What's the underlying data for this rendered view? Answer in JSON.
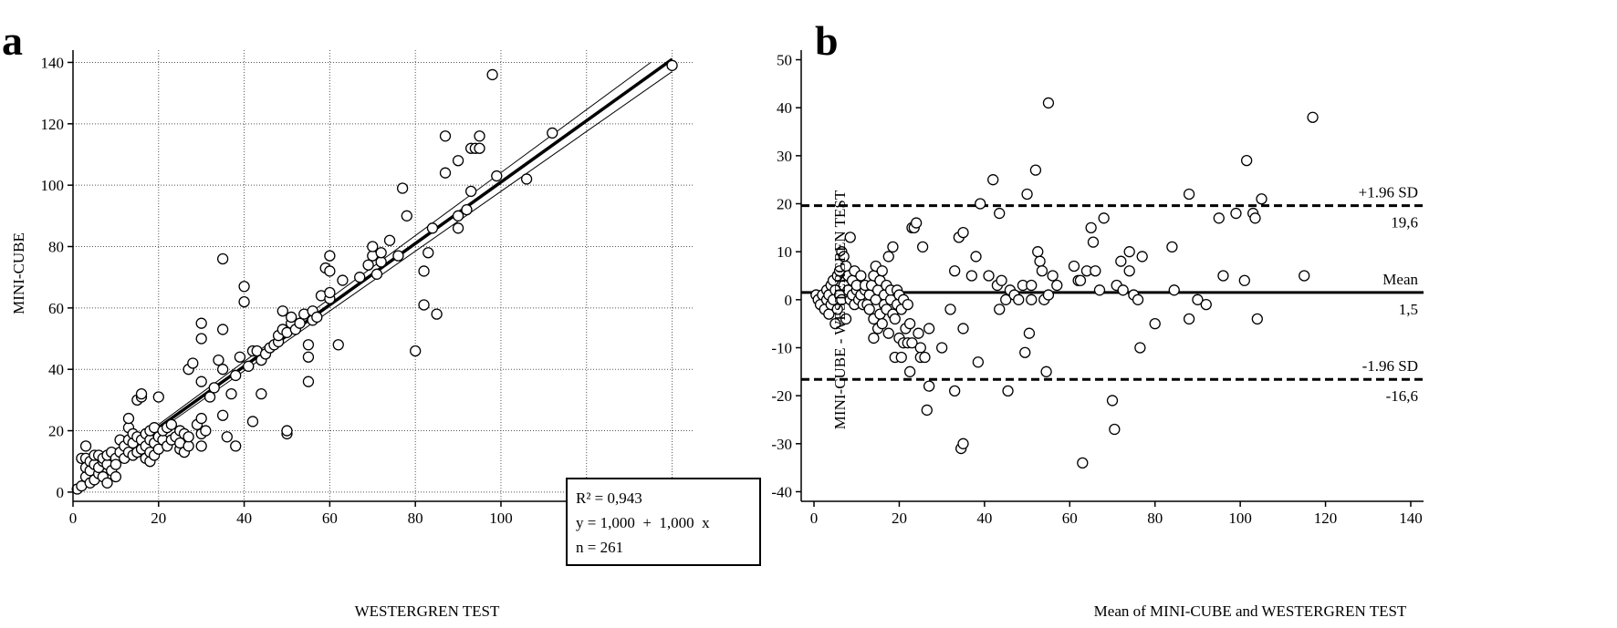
{
  "chart_data": [
    {
      "type": "scatter",
      "panel": "a",
      "xlabel": "WESTERGREN TEST",
      "ylabel": "MINI-CUBE",
      "xlim": [
        0,
        145
      ],
      "ylim": [
        -3,
        144
      ],
      "xticks": [
        0,
        20,
        40,
        60,
        80,
        100,
        120,
        140
      ],
      "yticks": [
        0,
        20,
        40,
        60,
        80,
        100,
        120,
        140
      ],
      "grid": true,
      "stats_box": {
        "r2": "R² = 0,943",
        "equation": "y = 1,000  +  1,000  x",
        "n": "n = 261"
      },
      "regression": {
        "intercept": 1.0,
        "slope": 1.0,
        "x_range": [
          0,
          140
        ]
      },
      "confidence_band": {
        "upper": [
          [
            0,
            1.5
          ],
          [
            135,
            140
          ]
        ],
        "lower": [
          [
            0,
            0.5
          ],
          [
            140,
            137
          ]
        ]
      },
      "points": [
        [
          1,
          1
        ],
        [
          2,
          2
        ],
        [
          2,
          11
        ],
        [
          3,
          15
        ],
        [
          3,
          11
        ],
        [
          3,
          5
        ],
        [
          3,
          8
        ],
        [
          4,
          3
        ],
        [
          4,
          7
        ],
        [
          4,
          10
        ],
        [
          5,
          4
        ],
        [
          5,
          9
        ],
        [
          5,
          12
        ],
        [
          6,
          6
        ],
        [
          6,
          8
        ],
        [
          6,
          12
        ],
        [
          7,
          5
        ],
        [
          7,
          10
        ],
        [
          7,
          11
        ],
        [
          8,
          3
        ],
        [
          8,
          9
        ],
        [
          8,
          12
        ],
        [
          9,
          7
        ],
        [
          9,
          13
        ],
        [
          10,
          5
        ],
        [
          10,
          11
        ],
        [
          10,
          9
        ],
        [
          11,
          13
        ],
        [
          11,
          17
        ],
        [
          12,
          11
        ],
        [
          12,
          15
        ],
        [
          13,
          13
        ],
        [
          13,
          17
        ],
        [
          13,
          21
        ],
        [
          13,
          24
        ],
        [
          14,
          12
        ],
        [
          14,
          16
        ],
        [
          14,
          19
        ],
        [
          15,
          13
        ],
        [
          15,
          18
        ],
        [
          15,
          30
        ],
        [
          16,
          14
        ],
        [
          16,
          17
        ],
        [
          16,
          31
        ],
        [
          16,
          32
        ],
        [
          17,
          11
        ],
        [
          17,
          15
        ],
        [
          17,
          19
        ],
        [
          18,
          10
        ],
        [
          18,
          13
        ],
        [
          18,
          17
        ],
        [
          18,
          20
        ],
        [
          19,
          12
        ],
        [
          19,
          16
        ],
        [
          19,
          21
        ],
        [
          20,
          14
        ],
        [
          20,
          18
        ],
        [
          20,
          31
        ],
        [
          21,
          17
        ],
        [
          21,
          20
        ],
        [
          22,
          15
        ],
        [
          22,
          21
        ],
        [
          23,
          17
        ],
        [
          23,
          22
        ],
        [
          24,
          18
        ],
        [
          25,
          14
        ],
        [
          25,
          16
        ],
        [
          25,
          20
        ],
        [
          26,
          13
        ],
        [
          26,
          19
        ],
        [
          27,
          15
        ],
        [
          27,
          18
        ],
        [
          27,
          40
        ],
        [
          28,
          42
        ],
        [
          29,
          22
        ],
        [
          30,
          15
        ],
        [
          30,
          19
        ],
        [
          30,
          24
        ],
        [
          30,
          36
        ],
        [
          30,
          50
        ],
        [
          30,
          55
        ],
        [
          31,
          20
        ],
        [
          32,
          31
        ],
        [
          33,
          34
        ],
        [
          34,
          43
        ],
        [
          35,
          25
        ],
        [
          35,
          40
        ],
        [
          35,
          53
        ],
        [
          35,
          76
        ],
        [
          36,
          18
        ],
        [
          37,
          32
        ],
        [
          38,
          15
        ],
        [
          38,
          38
        ],
        [
          39,
          44
        ],
        [
          40,
          62
        ],
        [
          40,
          67
        ],
        [
          41,
          41
        ],
        [
          42,
          23
        ],
        [
          42,
          46
        ],
        [
          43,
          46
        ],
        [
          44,
          32
        ],
        [
          44,
          43
        ],
        [
          45,
          45
        ],
        [
          46,
          47
        ],
        [
          47,
          48
        ],
        [
          48,
          49
        ],
        [
          48,
          51
        ],
        [
          49,
          53
        ],
        [
          49,
          59
        ],
        [
          50,
          19
        ],
        [
          50,
          20
        ],
        [
          50,
          52
        ],
        [
          51,
          55
        ],
        [
          51,
          57
        ],
        [
          52,
          53
        ],
        [
          53,
          55
        ],
        [
          54,
          58
        ],
        [
          55,
          36
        ],
        [
          55,
          44
        ],
        [
          55,
          48
        ],
        [
          56,
          56
        ],
        [
          56,
          59
        ],
        [
          57,
          57
        ],
        [
          58,
          64
        ],
        [
          59,
          73
        ],
        [
          60,
          63
        ],
        [
          60,
          65
        ],
        [
          60,
          72
        ],
        [
          60,
          77
        ],
        [
          62,
          48
        ],
        [
          63,
          69
        ],
        [
          67,
          70
        ],
        [
          69,
          74
        ],
        [
          70,
          77
        ],
        [
          70,
          80
        ],
        [
          71,
          71
        ],
        [
          72,
          75
        ],
        [
          72,
          78
        ],
        [
          74,
          82
        ],
        [
          76,
          77
        ],
        [
          77,
          99
        ],
        [
          78,
          90
        ],
        [
          80,
          46
        ],
        [
          82,
          61
        ],
        [
          82,
          72
        ],
        [
          83,
          78
        ],
        [
          84,
          86
        ],
        [
          85,
          58
        ],
        [
          87,
          104
        ],
        [
          87,
          116
        ],
        [
          90,
          86
        ],
        [
          90,
          90
        ],
        [
          90,
          108
        ],
        [
          92,
          92
        ],
        [
          93,
          98
        ],
        [
          93,
          112
        ],
        [
          94,
          112
        ],
        [
          95,
          112
        ],
        [
          95,
          116
        ],
        [
          99,
          103
        ],
        [
          98,
          136
        ],
        [
          106,
          102
        ],
        [
          112,
          117
        ],
        [
          140,
          139
        ]
      ]
    },
    {
      "type": "scatter",
      "panel": "b",
      "xlabel": "Mean of MINI-CUBE and WESTERGREN TEST",
      "ylabel": "MINI-CUBE - WESTERGREN TEST",
      "xlim": [
        -3,
        143
      ],
      "ylim": [
        -42,
        52
      ],
      "xticks": [
        0,
        20,
        40,
        60,
        80,
        100,
        120,
        140
      ],
      "yticks": [
        -40,
        -30,
        -20,
        -10,
        0,
        10,
        20,
        30,
        40,
        50
      ],
      "grid": false,
      "reference_lines": [
        {
          "y": 19.6,
          "style": "dashed",
          "label_top": "+1.96 SD",
          "label_bottom": "19,6"
        },
        {
          "y": 1.5,
          "style": "solid",
          "label_top": "Mean",
          "label_bottom": "1,5"
        },
        {
          "y": -16.6,
          "style": "dashed",
          "label_top": "-1.96 SD",
          "label_bottom": "-16,6"
        }
      ],
      "points": [
        [
          0.5,
          1
        ],
        [
          1,
          0
        ],
        [
          1.5,
          -1
        ],
        [
          2,
          1
        ],
        [
          2.5,
          -2
        ],
        [
          3,
          0
        ],
        [
          3,
          2
        ],
        [
          3.5,
          -3
        ],
        [
          3.5,
          1
        ],
        [
          4,
          3
        ],
        [
          4,
          -1
        ],
        [
          4.5,
          0
        ],
        [
          4.5,
          4
        ],
        [
          5,
          -5
        ],
        [
          5,
          2
        ],
        [
          5.5,
          -2
        ],
        [
          5.5,
          5
        ],
        [
          6,
          1
        ],
        [
          6,
          6
        ],
        [
          6.5,
          0
        ],
        [
          6.5,
          10
        ],
        [
          7,
          3
        ],
        [
          7,
          9
        ],
        [
          7.5,
          -4
        ],
        [
          7.5,
          7
        ],
        [
          8,
          2
        ],
        [
          8,
          5
        ],
        [
          8.5,
          0
        ],
        [
          8.5,
          13
        ],
        [
          9,
          1
        ],
        [
          9,
          4
        ],
        [
          9.5,
          -1
        ],
        [
          9.5,
          6
        ],
        [
          10,
          2
        ],
        [
          10,
          3
        ],
        [
          10.5,
          0
        ],
        [
          11,
          5
        ],
        [
          11,
          1
        ],
        [
          11.5,
          -1
        ],
        [
          12,
          2
        ],
        [
          12,
          3
        ],
        [
          12.5,
          -1
        ],
        [
          13,
          1
        ],
        [
          13,
          -2
        ],
        [
          13.5,
          3
        ],
        [
          14,
          5
        ],
        [
          14,
          -4
        ],
        [
          14,
          -8
        ],
        [
          14.5,
          0
        ],
        [
          14.5,
          7
        ],
        [
          15,
          2
        ],
        [
          15,
          -6
        ],
        [
          15.5,
          4
        ],
        [
          15.5,
          -3
        ],
        [
          16,
          -5
        ],
        [
          16,
          6
        ],
        [
          16.5,
          1
        ],
        [
          16.5,
          -1
        ],
        [
          17,
          3
        ],
        [
          17,
          -2
        ],
        [
          17.5,
          -7
        ],
        [
          17.5,
          9
        ],
        [
          18,
          0
        ],
        [
          18,
          2
        ],
        [
          18.5,
          -3
        ],
        [
          18.5,
          11
        ],
        [
          19,
          -12
        ],
        [
          19,
          -4
        ],
        [
          19.5,
          -1
        ],
        [
          19.5,
          2
        ],
        [
          20,
          -8
        ],
        [
          20,
          1
        ],
        [
          20.5,
          -12
        ],
        [
          20.5,
          -2
        ],
        [
          21,
          -9
        ],
        [
          21,
          0
        ],
        [
          21.5,
          -6
        ],
        [
          22,
          -9
        ],
        [
          22,
          -1
        ],
        [
          22.5,
          -15
        ],
        [
          22.5,
          -5
        ],
        [
          23,
          -9
        ],
        [
          23,
          15
        ],
        [
          23.5,
          15
        ],
        [
          24,
          16
        ],
        [
          24.5,
          -7
        ],
        [
          25,
          -10
        ],
        [
          25,
          -12
        ],
        [
          25.5,
          11
        ],
        [
          26,
          -12
        ],
        [
          26.5,
          -23
        ],
        [
          27,
          -6
        ],
        [
          27,
          -18
        ],
        [
          30,
          -10
        ],
        [
          32,
          -2
        ],
        [
          33,
          6
        ],
        [
          33,
          -19
        ],
        [
          34,
          13
        ],
        [
          34.5,
          -31
        ],
        [
          35,
          -30
        ],
        [
          35,
          14
        ],
        [
          35,
          -6
        ],
        [
          37,
          5
        ],
        [
          38,
          9
        ],
        [
          38.5,
          -13
        ],
        [
          39,
          20
        ],
        [
          41,
          5
        ],
        [
          42,
          25
        ],
        [
          43,
          3
        ],
        [
          43.5,
          18
        ],
        [
          43.5,
          -2
        ],
        [
          44,
          4
        ],
        [
          45,
          0
        ],
        [
          45.5,
          -19
        ],
        [
          46,
          2
        ],
        [
          47,
          1
        ],
        [
          48,
          0
        ],
        [
          49,
          3
        ],
        [
          49.5,
          -11
        ],
        [
          50,
          22
        ],
        [
          50.5,
          -7
        ],
        [
          51,
          3
        ],
        [
          51,
          0
        ],
        [
          52,
          27
        ],
        [
          52.5,
          10
        ],
        [
          53,
          8
        ],
        [
          53.5,
          6
        ],
        [
          54,
          0
        ],
        [
          54.5,
          -15
        ],
        [
          55,
          41
        ],
        [
          55,
          1
        ],
        [
          56,
          5
        ],
        [
          57,
          3
        ],
        [
          61,
          7
        ],
        [
          62,
          4
        ],
        [
          62.5,
          4
        ],
        [
          63,
          -34
        ],
        [
          64,
          6
        ],
        [
          65,
          15
        ],
        [
          65.5,
          12
        ],
        [
          66,
          6
        ],
        [
          67,
          2
        ],
        [
          68,
          17
        ],
        [
          70,
          -21
        ],
        [
          70.5,
          -27
        ],
        [
          71,
          3
        ],
        [
          72,
          8
        ],
        [
          72.5,
          2
        ],
        [
          74,
          10
        ],
        [
          74,
          6
        ],
        [
          75,
          1
        ],
        [
          76,
          0
        ],
        [
          76.5,
          -10
        ],
        [
          77,
          9
        ],
        [
          80,
          -5
        ],
        [
          84,
          11
        ],
        [
          84.5,
          2
        ],
        [
          88,
          22
        ],
        [
          88,
          -4
        ],
        [
          90,
          0
        ],
        [
          92,
          -1
        ],
        [
          95,
          17
        ],
        [
          96,
          5
        ],
        [
          99,
          18
        ],
        [
          101,
          4
        ],
        [
          101.5,
          29
        ],
        [
          103,
          18
        ],
        [
          103.5,
          17
        ],
        [
          104,
          -4
        ],
        [
          105,
          21
        ],
        [
          115,
          5
        ],
        [
          117,
          38
        ]
      ]
    }
  ],
  "panels": {
    "a": {
      "letter": "a"
    },
    "b": {
      "letter": "b"
    }
  }
}
